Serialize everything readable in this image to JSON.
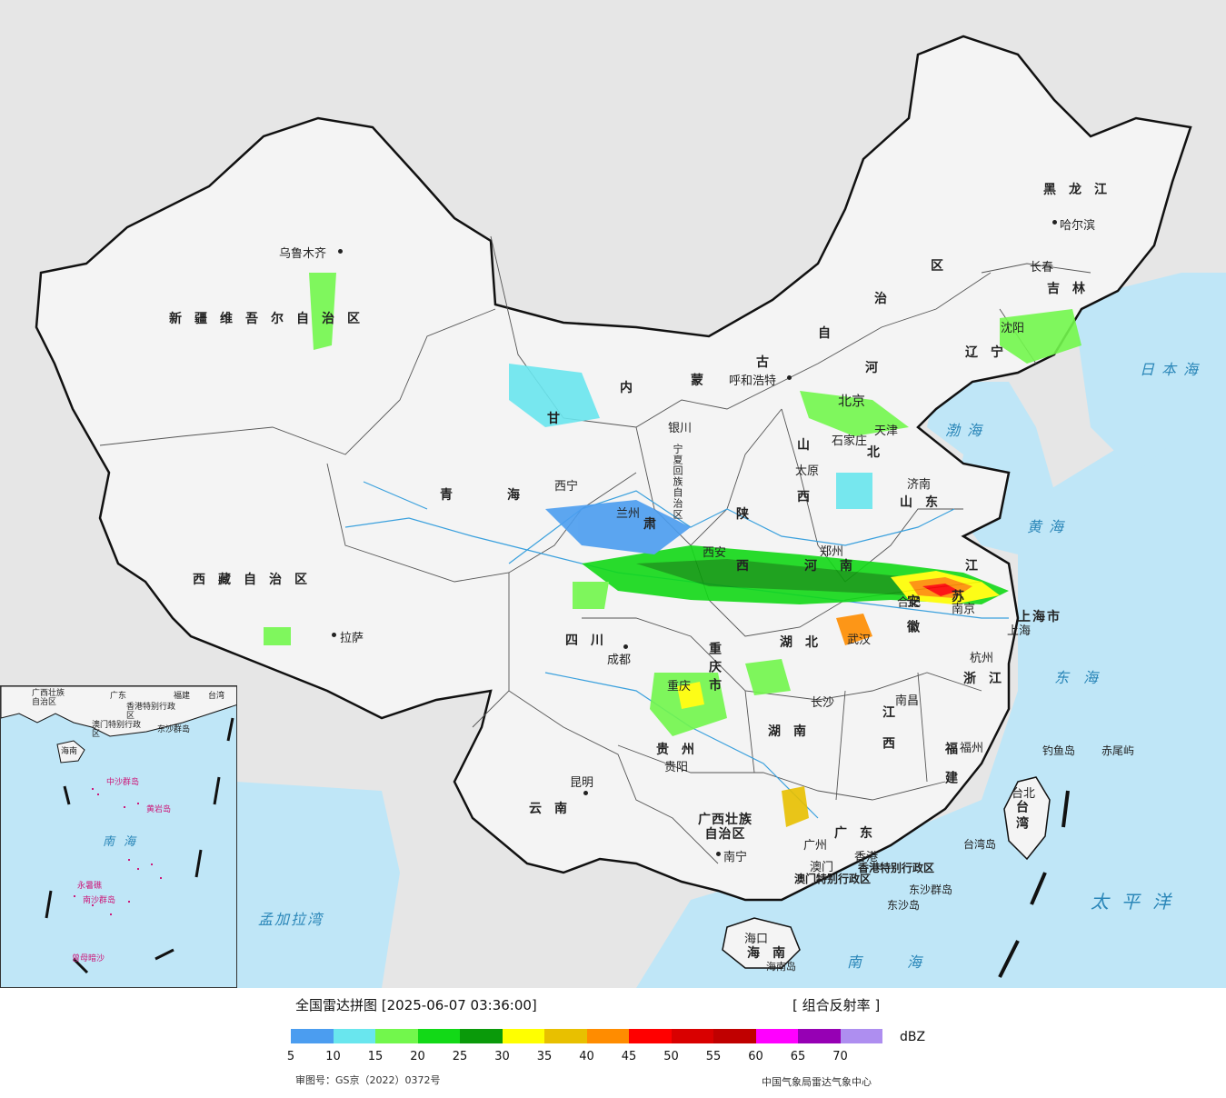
{
  "legend": {
    "title": "全国雷达拼图 [2025-06-07 03:36:00]",
    "product": "[ 组合反射率 ]",
    "unit": "dBZ",
    "colors": [
      "#4b9df0",
      "#69e6ee",
      "#72f74c",
      "#12d917",
      "#0a9a0a",
      "#ffff00",
      "#e8c000",
      "#ff8c00",
      "#ff0000",
      "#d90000",
      "#c00000",
      "#ff00ff",
      "#9600b4",
      "#ae8ef0"
    ],
    "ticks": [
      "5",
      "10",
      "15",
      "20",
      "25",
      "30",
      "35",
      "40",
      "45",
      "50",
      "55",
      "60",
      "65",
      "70"
    ],
    "approval": "审图号：GS京（2022）0372号",
    "agency": "中国气象局雷达气象中心"
  },
  "map": {
    "colors": {
      "sea": "#bfe6f7",
      "land_china": "#f4f4f4",
      "land_foreign": "#e6e6e6",
      "border": "#111111",
      "river": "#3aa0dd"
    },
    "regions": [
      {
        "id": "xinjiang",
        "text": "新疆维吾尔自治区"
      },
      {
        "id": "xizang",
        "text": "西藏自治区"
      },
      {
        "id": "qinghai-1",
        "text": "青"
      },
      {
        "id": "qinghai-2",
        "text": "海"
      },
      {
        "id": "gansu-1",
        "text": "甘"
      },
      {
        "id": "gansu-2",
        "text": "肃"
      },
      {
        "id": "neimenggu-1",
        "text": "内"
      },
      {
        "id": "neimenggu-2",
        "text": "蒙"
      },
      {
        "id": "neimenggu-3",
        "text": "古"
      },
      {
        "id": "neimenggu-4",
        "text": "自"
      },
      {
        "id": "neimenggu-5",
        "text": "治"
      },
      {
        "id": "neimenggu-6",
        "text": "区"
      },
      {
        "id": "heilongjiang",
        "text": "黑龙江"
      },
      {
        "id": "jilin",
        "text": "吉林"
      },
      {
        "id": "liaoning",
        "text": "辽宁"
      },
      {
        "id": "hebei-1",
        "text": "河"
      },
      {
        "id": "hebei-2",
        "text": "北"
      },
      {
        "id": "shanxi-1",
        "text": "山"
      },
      {
        "id": "shanxi-2",
        "text": "西"
      },
      {
        "id": "shaanxi-1",
        "text": "陕"
      },
      {
        "id": "shaanxi-2",
        "text": "西"
      },
      {
        "id": "ningxia",
        "text": "宁夏回族自治区"
      },
      {
        "id": "shandong",
        "text": "山东"
      },
      {
        "id": "henan-1",
        "text": "河"
      },
      {
        "id": "henan-2",
        "text": "南"
      },
      {
        "id": "jiangsu-1",
        "text": "江"
      },
      {
        "id": "jiangsu-2",
        "text": "苏"
      },
      {
        "id": "anhui",
        "text": "安徽"
      },
      {
        "id": "shanghai",
        "text": "上海市"
      },
      {
        "id": "hubei",
        "text": "湖北"
      },
      {
        "id": "sichuan",
        "text": "四川"
      },
      {
        "id": "chongqing",
        "text": "重庆市"
      },
      {
        "id": "zhejiang",
        "text": "浙江"
      },
      {
        "id": "hunan",
        "text": "湖南"
      },
      {
        "id": "jiangxi",
        "text": "江西"
      },
      {
        "id": "fujian",
        "text": "福建"
      },
      {
        "id": "guizhou",
        "text": "贵州"
      },
      {
        "id": "yunnan",
        "text": "云南"
      },
      {
        "id": "guangxi",
        "text": "广西壮族自治区"
      },
      {
        "id": "guangdong",
        "text": "广东"
      },
      {
        "id": "taiwan",
        "text": "台湾"
      },
      {
        "id": "hainan",
        "text": "海南"
      },
      {
        "id": "hongkong",
        "text": "香港特别行政区"
      },
      {
        "id": "macao",
        "text": "澳门特别行政区"
      }
    ],
    "cities": [
      {
        "id": "urumqi",
        "text": "乌鲁木齐"
      },
      {
        "id": "lhasa",
        "text": "拉萨"
      },
      {
        "id": "xining",
        "text": "西宁"
      },
      {
        "id": "lanzhou",
        "text": "兰州"
      },
      {
        "id": "yinchuan",
        "text": "银川"
      },
      {
        "id": "hohhot",
        "text": "呼和浩特"
      },
      {
        "id": "harbin",
        "text": "哈尔滨"
      },
      {
        "id": "changchun",
        "text": "长春"
      },
      {
        "id": "shenyang",
        "text": "沈阳"
      },
      {
        "id": "beijing",
        "text": "北京"
      },
      {
        "id": "tianjin",
        "text": "天津"
      },
      {
        "id": "shijiazhuang",
        "text": "石家庄"
      },
      {
        "id": "taiyuan",
        "text": "太原"
      },
      {
        "id": "jinan",
        "text": "济南"
      },
      {
        "id": "zhengzhou",
        "text": "郑州"
      },
      {
        "id": "xian",
        "text": "西安"
      },
      {
        "id": "hefei",
        "text": "合肥"
      },
      {
        "id": "nanjing",
        "text": "南京"
      },
      {
        "id": "shanghai-city",
        "text": "上海"
      },
      {
        "id": "hangzhou",
        "text": "杭州"
      },
      {
        "id": "wuhan",
        "text": "武汉"
      },
      {
        "id": "chengdu",
        "text": "成都"
      },
      {
        "id": "chongqing-city",
        "text": "重庆"
      },
      {
        "id": "changsha",
        "text": "长沙"
      },
      {
        "id": "nanchang",
        "text": "南昌"
      },
      {
        "id": "fuzhou",
        "text": "福州"
      },
      {
        "id": "guiyang",
        "text": "贵阳"
      },
      {
        "id": "kunming",
        "text": "昆明"
      },
      {
        "id": "nanning",
        "text": "南宁"
      },
      {
        "id": "guangzhou",
        "text": "广州"
      },
      {
        "id": "hk",
        "text": "香港"
      },
      {
        "id": "macau",
        "text": "澳门"
      },
      {
        "id": "haikou",
        "text": "海口"
      },
      {
        "id": "taipei",
        "text": "台北"
      }
    ],
    "islands": [
      {
        "id": "diaoyu",
        "text": "钓鱼岛"
      },
      {
        "id": "chiwei",
        "text": "赤尾屿"
      },
      {
        "id": "taiwan-island",
        "text": "台湾岛"
      },
      {
        "id": "dongsha-islands",
        "text": "东沙群岛"
      },
      {
        "id": "dongsha",
        "text": "东沙岛"
      },
      {
        "id": "hainan-island",
        "text": "海南岛"
      }
    ],
    "seas": [
      {
        "id": "sea-japan",
        "text": "日本海"
      },
      {
        "id": "sea-bohai",
        "text": "渤海"
      },
      {
        "id": "sea-yellow",
        "text": "黄海"
      },
      {
        "id": "sea-east",
        "text": "东海"
      },
      {
        "id": "sea-pacific",
        "text": "太平洋"
      },
      {
        "id": "sea-south",
        "text": "南海"
      },
      {
        "id": "sea-bengal",
        "text": "孟加拉湾"
      }
    ],
    "inset": {
      "labels": [
        "广西壮族自治区",
        "广东",
        "福建",
        "台湾",
        "香港特别行政区",
        "澳门特别行政区",
        "东沙群岛",
        "海南",
        "南海"
      ],
      "pink_labels": [
        "中沙群岛",
        "黄岩岛",
        "南沙群岛",
        "永暑礁",
        "曾母暗沙"
      ]
    }
  }
}
